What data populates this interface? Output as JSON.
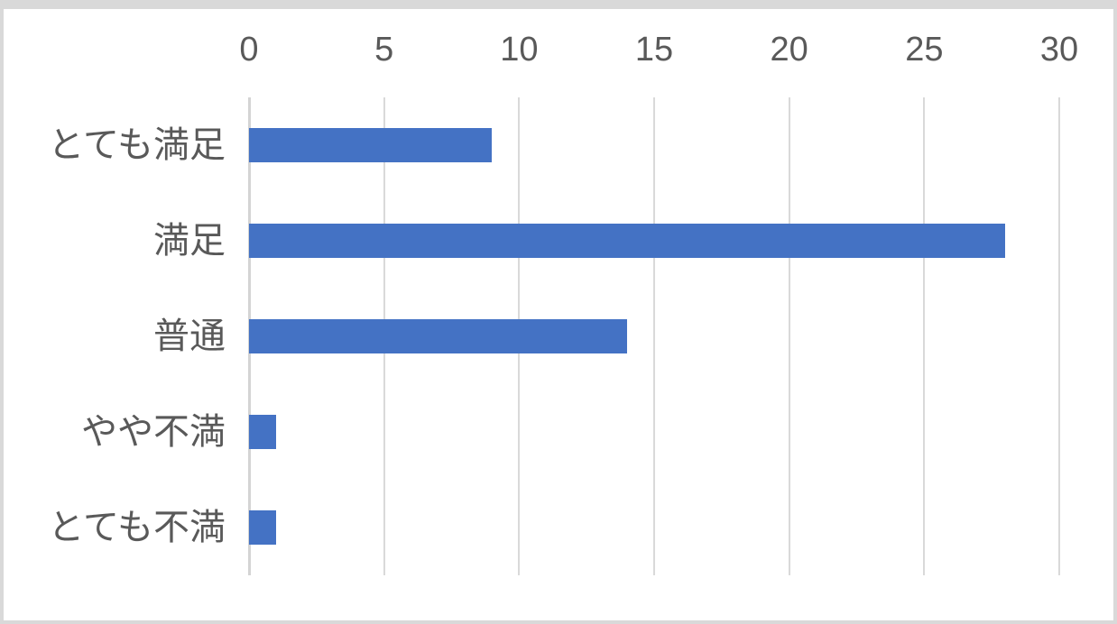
{
  "chart_data": {
    "type": "bar",
    "orientation": "horizontal",
    "title": "",
    "xlabel": "",
    "ylabel": "",
    "categories": [
      "とても満足",
      "満足",
      "普通",
      "やや不満",
      "とても不満"
    ],
    "values": [
      9,
      28,
      14,
      1,
      1
    ],
    "xlim": [
      0,
      30
    ],
    "xticks": [
      0,
      5,
      10,
      15,
      20,
      25,
      30
    ],
    "grid": "vertical-gridlines-on",
    "legend": "none",
    "value_axis_position": "top",
    "colors": {
      "bar": "#4472C4",
      "gridline": "#D9D9D9",
      "axis_line": "#D4D4D4",
      "tick_label": "#595959",
      "category_label": "#595959",
      "plot_background": "#FFFFFF",
      "outer_frame": "#D9D9D9"
    }
  }
}
